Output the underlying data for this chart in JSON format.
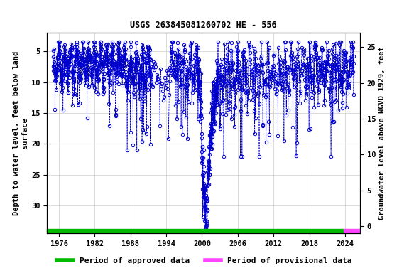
{
  "title": "USGS 263845081260702 HE - 556",
  "ylabel_left": "Depth to water level, feet below land\nsurface",
  "ylabel_right": "Groundwater level above NGVD 1929, feet",
  "ylim_left": [
    34.5,
    2.0
  ],
  "ylim_right": [
    -1.0,
    27.0
  ],
  "xlim": [
    1974.0,
    2026.5
  ],
  "yticks_left": [
    5,
    10,
    15,
    20,
    25,
    30
  ],
  "yticks_right": [
    0,
    5,
    10,
    15,
    20,
    25
  ],
  "xticks": [
    1976,
    1982,
    1988,
    1994,
    2000,
    2006,
    2012,
    2018,
    2024
  ],
  "line_color": "#0000cc",
  "marker_color": "#0000cc",
  "background_color": "#ffffff",
  "approved_color": "#00bb00",
  "provisional_color": "#ff44ff",
  "approved_start": 1974.0,
  "approved_end": 2023.8,
  "provisional_start": 2023.8,
  "provisional_end": 2026.5,
  "title_fontsize": 8.5,
  "axis_fontsize": 7.5,
  "tick_fontsize": 7.5,
  "legend_fontsize": 8,
  "bar_y_center": 34.0,
  "bar_y_height": 0.6
}
